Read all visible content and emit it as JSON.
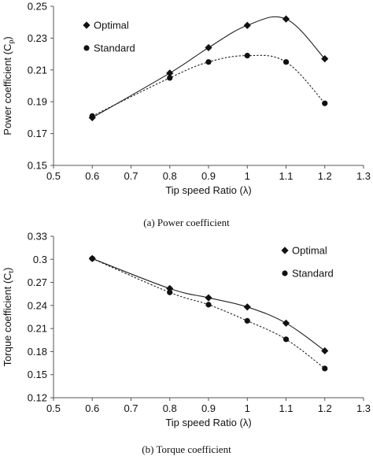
{
  "chart_data": [
    {
      "type": "line",
      "caption": "(a) Power coefficient",
      "xlabel": "Tip speed Ratio (λ)",
      "ylabel": "Power coefficient (C",
      "ylabel_sub": "p",
      "ylabel_tail": ")",
      "xlim": [
        0.5,
        1.3
      ],
      "ylim": [
        0.15,
        0.25
      ],
      "xticks": [
        "0.5",
        "0.6",
        "0.7",
        "0.8",
        "0.9",
        "1",
        "1.1",
        "1.2",
        "1.3"
      ],
      "yticks": [
        "0.15",
        "0.17",
        "0.19",
        "0.21",
        "0.23",
        "0.25"
      ],
      "grid": false,
      "legend_position": "top-left",
      "series": [
        {
          "name": "Optimal",
          "marker": "diamond",
          "line": "solid",
          "x": [
            0.6,
            0.8,
            0.9,
            1.0,
            1.1,
            1.2
          ],
          "y": [
            0.18,
            0.208,
            0.224,
            0.238,
            0.242,
            0.217
          ]
        },
        {
          "name": "Standard",
          "marker": "circle",
          "line": "dotted",
          "x": [
            0.6,
            0.8,
            0.9,
            1.0,
            1.1,
            1.2
          ],
          "y": [
            0.181,
            0.205,
            0.215,
            0.219,
            0.215,
            0.189
          ]
        }
      ]
    },
    {
      "type": "line",
      "caption": "(b) Torque coefficient",
      "xlabel": "Tip speed Ratio (λ)",
      "ylabel": "Torque coefficient (C",
      "ylabel_sub": "t",
      "ylabel_tail": ")",
      "xlim": [
        0.5,
        1.3
      ],
      "ylim": [
        0.12,
        0.33
      ],
      "xticks": [
        "0.5",
        "0.6",
        "0.7",
        "0.8",
        "0.9",
        "1",
        "1.1",
        "1.2",
        "1.3"
      ],
      "yticks": [
        "0.12",
        "0.15",
        "0.18",
        "0.21",
        "0.24",
        "0.27",
        "0.3",
        "0.33"
      ],
      "grid": false,
      "legend_position": "top-right",
      "series": [
        {
          "name": "Optimal",
          "marker": "diamond",
          "line": "solid",
          "x": [
            0.6,
            0.8,
            0.9,
            1.0,
            1.1,
            1.2
          ],
          "y": [
            0.301,
            0.262,
            0.25,
            0.238,
            0.217,
            0.181
          ]
        },
        {
          "name": "Standard",
          "marker": "circle",
          "line": "dotted",
          "x": [
            0.6,
            0.8,
            0.9,
            1.0,
            1.1,
            1.2
          ],
          "y": [
            0.301,
            0.257,
            0.241,
            0.22,
            0.196,
            0.158
          ]
        }
      ]
    }
  ]
}
